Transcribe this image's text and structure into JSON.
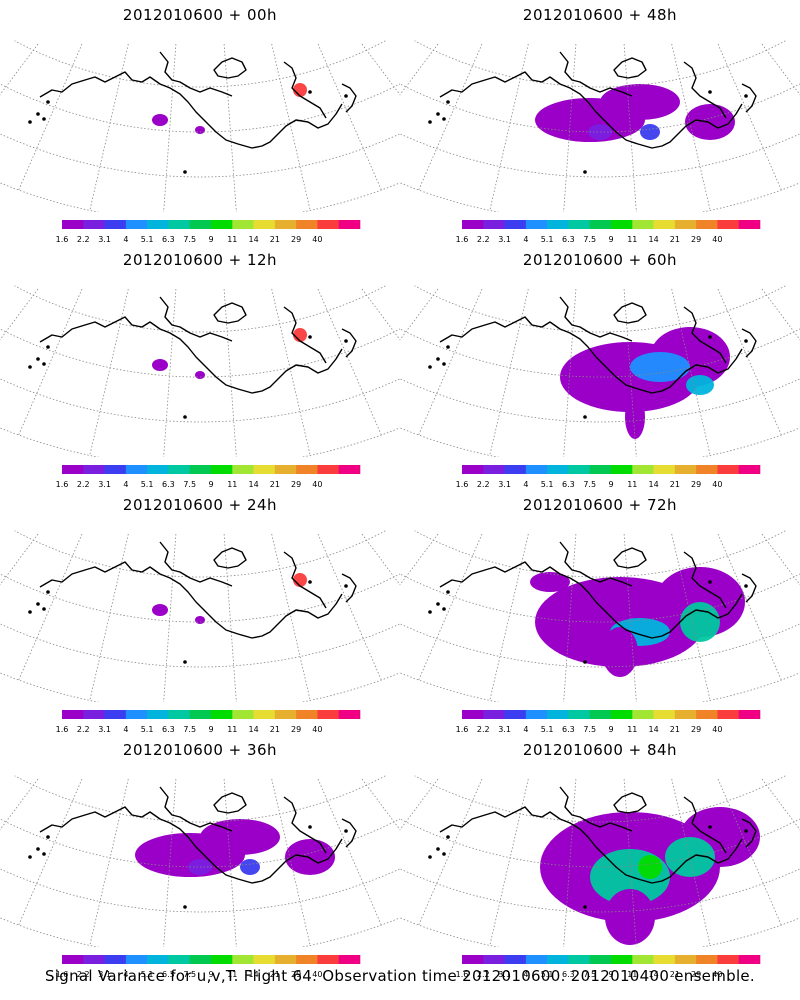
{
  "panels": [
    {
      "title": "2012010600 + 00h",
      "intensity": 0
    },
    {
      "title": "2012010600 + 48h",
      "intensity": 1
    },
    {
      "title": "2012010600 + 12h",
      "intensity": 0
    },
    {
      "title": "2012010600 + 60h",
      "intensity": 2
    },
    {
      "title": "2012010600 + 24h",
      "intensity": 0
    },
    {
      "title": "2012010600 + 72h",
      "intensity": 3
    },
    {
      "title": "2012010600 + 36h",
      "intensity": 1
    },
    {
      "title": "2012010600 + 84h",
      "intensity": 4
    }
  ],
  "colorbar": {
    "labels": [
      "1.6",
      "2.2",
      "3.1",
      "4",
      "5.1",
      "6.3",
      "7.5",
      "9",
      "11",
      "14",
      "21",
      "29",
      "40"
    ],
    "colors": [
      "#9a00c8",
      "#7a1ee0",
      "#3c3cf0",
      "#1e90ff",
      "#00b4dc",
      "#00c8a0",
      "#00c850",
      "#00dc00",
      "#a0e632",
      "#e6dc32",
      "#e6af2d",
      "#f08228",
      "#fa3c3c",
      "#f00082"
    ]
  },
  "caption": "Signal Variance for u,v,T. Flight 64. Observation time 2012010600. 2012010400 ensemble."
}
